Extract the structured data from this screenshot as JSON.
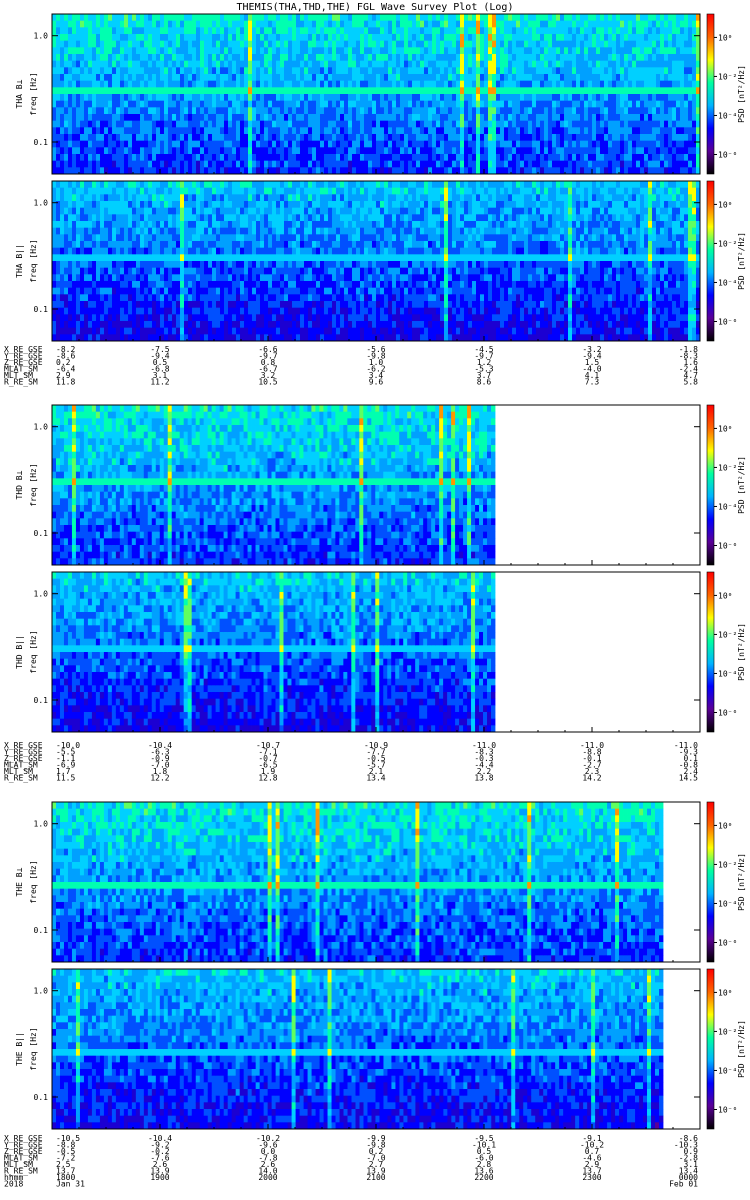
{
  "chart_data": {
    "type": "heatmap",
    "title": "THEMIS(THA,THD,THE) FGL Wave Survey Plot (Log)",
    "colorscale": [
      "#000000",
      "#5a0096",
      "#0000ff",
      "#00b4ff",
      "#00ffa0",
      "#ffff00",
      "#ff6400",
      "#ff0000"
    ],
    "probes": [
      {
        "id": "THA",
        "panels": [
          {
            "ylabel": "THA B⊥",
            "yunit": "freq [Hz]",
            "cbar_label": "PSD [nT²/Hz]"
          },
          {
            "ylabel": "THA B||",
            "yunit": "freq [Hz]",
            "cbar_label": "PSD [nT²/Hz]"
          }
        ],
        "data_extent_fraction": 1.0,
        "line_frequency_hz": 0.32,
        "ephemeris": [
          {
            "label": "X_RE_GSE",
            "values": [
              "-8.2",
              "-7.5",
              "-6.6",
              "-5.6",
              "-4.5",
              "-3.2",
              "-1.8"
            ]
          },
          {
            "label": "Y_RE_GSE",
            "values": [
              "-8.6",
              "-9.4",
              "-9.7",
              "-9.8",
              "-9.7",
              "-9.4",
              "-8.3"
            ]
          },
          {
            "label": "Z_RE_GSE",
            "values": [
              "0.2",
              "0.5",
              "0.8",
              "1.0",
              "1.2",
              "1.5",
              "1.6"
            ]
          },
          {
            "label": "MLAT_SM",
            "values": [
              "-6.4",
              "-6.8",
              "-6.7",
              "-6.2",
              "-5.3",
              "-4.0",
              "-2.4"
            ]
          },
          {
            "label": "MLT_SM",
            "values": [
              "2.9",
              "3.1",
              "3.2",
              "3.4",
              "3.7",
              "4.1",
              "4.7"
            ]
          },
          {
            "label": "R_RE_SM",
            "values": [
              "11.8",
              "11.2",
              "10.5",
              "9.6",
              "8.6",
              "7.3",
              "5.8"
            ]
          }
        ]
      },
      {
        "id": "THD",
        "panels": [
          {
            "ylabel": "THD B⊥",
            "yunit": "freq [Hz]",
            "cbar_label": "PSD [nT²/Hz]"
          },
          {
            "ylabel": "THD B||",
            "yunit": "freq [Hz]",
            "cbar_label": "PSD [nT²/Hz]"
          }
        ],
        "data_extent_fraction": 0.683,
        "line_frequency_hz": 0.32,
        "ephemeris": [
          {
            "label": "X_RE_GSE",
            "values": [
              "-10.0",
              "-10.4",
              "-10.7",
              "-10.9",
              "-11.0",
              "-11.0",
              "-11.0"
            ]
          },
          {
            "label": "Y_RE_GSE",
            "values": [
              "-5.5",
              "-6.3",
              "-7.1",
              "-7.7",
              "-8.3",
              "-8.8",
              "-9.3"
            ]
          },
          {
            "label": "Z_RE_GSE",
            "values": [
              "-1.1",
              "-0.9",
              "-0.7",
              "-0.5",
              "-0.3",
              "-0.1",
              "0.1"
            ]
          },
          {
            "label": "MLAT_SM",
            "values": [
              "-6.9",
              "-7.0",
              "-6.5",
              "-5.7",
              "-4.4",
              "-2.7",
              "-0.8"
            ]
          },
          {
            "label": "MLT_SM",
            "values": [
              "1.7",
              "1.8",
              "1.9",
              "2.1",
              "2.2",
              "2.3",
              "2.4"
            ]
          },
          {
            "label": "R_RE_SM",
            "values": [
              "11.5",
              "12.2",
              "12.8",
              "13.4",
              "13.8",
              "14.2",
              "14.5"
            ]
          }
        ]
      },
      {
        "id": "THE",
        "panels": [
          {
            "ylabel": "THE B⊥",
            "yunit": "freq [Hz]",
            "cbar_label": "PSD [nT²/Hz]"
          },
          {
            "ylabel": "THE B||",
            "yunit": "freq [Hz]",
            "cbar_label": "PSD [nT²/Hz]"
          }
        ],
        "data_extent_fraction": 0.943,
        "line_frequency_hz": 0.25,
        "ephemeris": [
          {
            "label": "X_RE_GSE",
            "values": [
              "-10.5",
              "-10.4",
              "-10.2",
              "-9.9",
              "-9.5",
              "-9.1",
              "-8.6"
            ]
          },
          {
            "label": "Y_RE_GSE",
            "values": [
              "-8.8",
              "-9.2",
              "-9.6",
              "-9.8",
              "-10.1",
              "-10.2",
              "-10.3"
            ]
          },
          {
            "label": "Z_RE_GSE",
            "values": [
              "-0.5",
              "-0.2",
              "0.0",
              "0.2",
              "0.5",
              "0.7",
              "0.9"
            ]
          },
          {
            "label": "MLAT_SM",
            "values": [
              "-7.2",
              "-7.6",
              "-7.8",
              "-7.0",
              "-6.0",
              "-4.6",
              "-2.8"
            ]
          },
          {
            "label": "MLT_SM",
            "values": [
              "2.5",
              "2.6",
              "2.6",
              "2.7",
              "2.8",
              "2.9",
              "3.1"
            ]
          },
          {
            "label": "R_RE_SM",
            "values": [
              "13.7",
              "13.9",
              "14.0",
              "13.9",
              "13.6",
              "13.7",
              "13.4"
            ]
          }
        ]
      }
    ],
    "time_axis": {
      "label": "hhmm",
      "date_label": "2018",
      "ticks": [
        "1800",
        "1900",
        "2000",
        "2100",
        "2200",
        "2300",
        "0000"
      ],
      "date_ticks": [
        "Jan 31",
        "",
        "",
        "",
        "",
        "",
        "Feb 01"
      ]
    },
    "yaxis": {
      "scale": "log",
      "ylim_hz": [
        0.05,
        1.6
      ],
      "tick_labels": [
        "0.1",
        "1.0"
      ],
      "tick_values": [
        0.1,
        1.0
      ]
    },
    "colorbar": {
      "scale": "log",
      "tick_labels": [
        "10⁰",
        "10⁻²",
        "10⁻⁴",
        "10⁻⁶"
      ],
      "tick_values": [
        0,
        -2,
        -4,
        -6
      ]
    }
  }
}
